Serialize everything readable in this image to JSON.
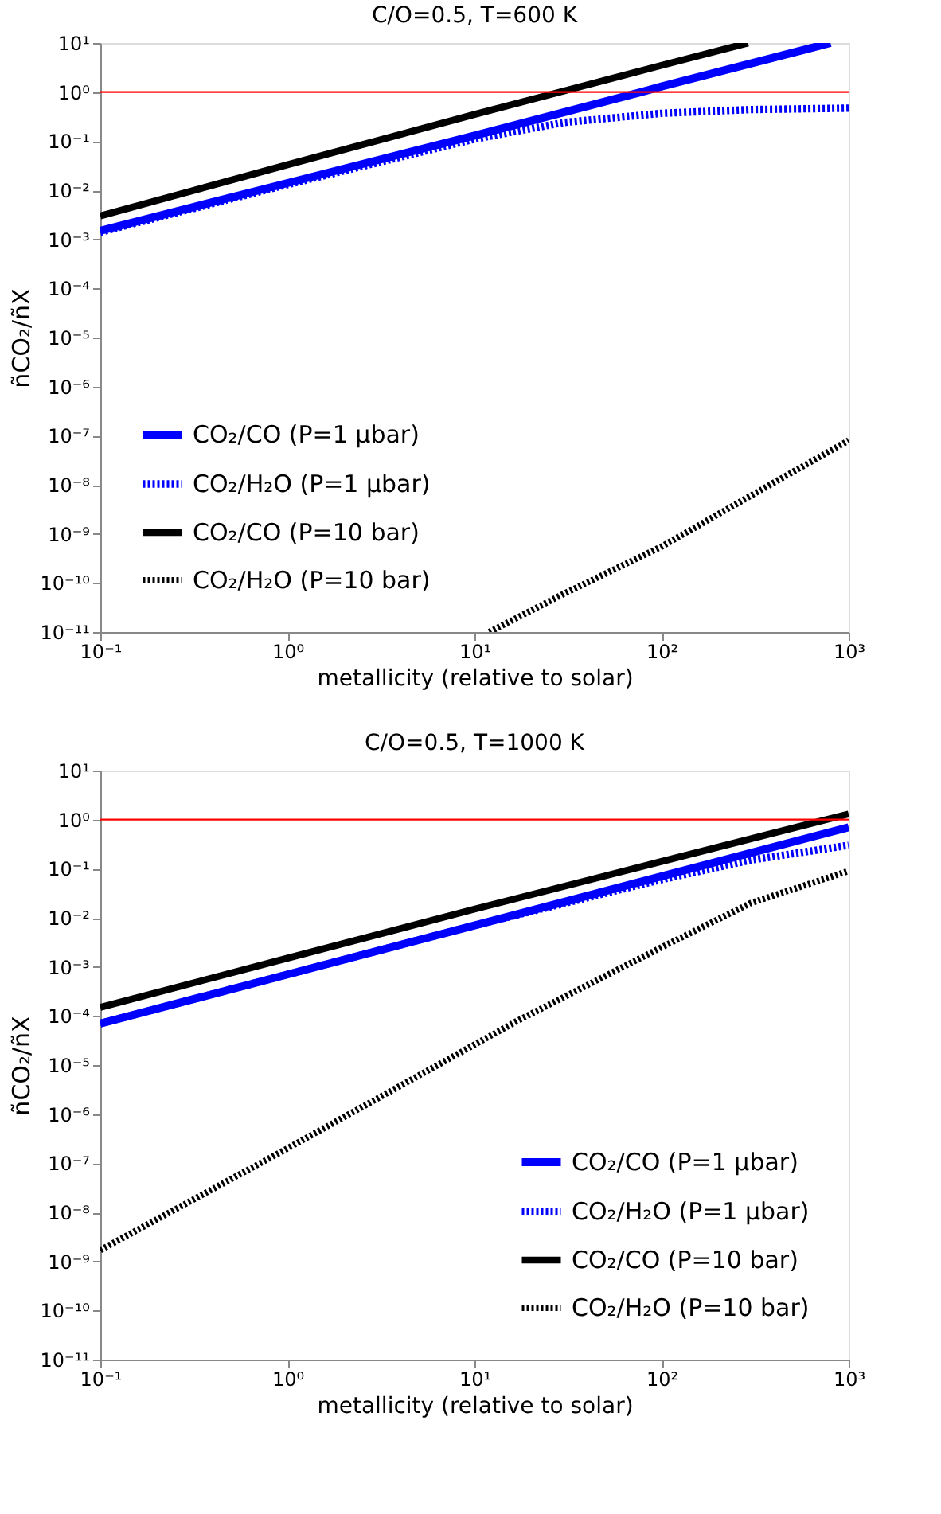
{
  "chart_data": [
    {
      "type": "line",
      "title": "C/O=0.5, T=600 K",
      "xlabel": "metallicity (relative to solar)",
      "ylabel": "ñCO₂/ñX",
      "log": "xy",
      "grid": false,
      "legend": "bottom left",
      "xlim": [
        0.1,
        1000
      ],
      "ylim": [
        1e-11,
        10
      ],
      "xticks": [
        {
          "value": 0.1,
          "label": "10⁻¹"
        },
        {
          "value": 1,
          "label": "10⁰"
        },
        {
          "value": 10,
          "label": "10¹"
        },
        {
          "value": 100,
          "label": "10²"
        },
        {
          "value": 1000,
          "label": "10³"
        }
      ],
      "yticks": [
        {
          "value": 1e-11,
          "label": "10⁻¹¹"
        },
        {
          "value": 1e-10,
          "label": "10⁻¹⁰"
        },
        {
          "value": 1e-09,
          "label": "10⁻⁹"
        },
        {
          "value": 1e-08,
          "label": "10⁻⁸"
        },
        {
          "value": 1e-07,
          "label": "10⁻⁷"
        },
        {
          "value": 1e-06,
          "label": "10⁻⁶"
        },
        {
          "value": 1e-05,
          "label": "10⁻⁵"
        },
        {
          "value": 0.0001,
          "label": "10⁻⁴"
        },
        {
          "value": 0.001,
          "label": "10⁻³"
        },
        {
          "value": 0.01,
          "label": "10⁻²"
        },
        {
          "value": 0.1,
          "label": "10⁻¹"
        },
        {
          "value": 1,
          "label": "10⁰"
        },
        {
          "value": 10,
          "label": "10¹"
        }
      ],
      "ref_lines": [
        {
          "axis": "y",
          "value": 1,
          "color": "#ff0000"
        }
      ],
      "series": [
        {
          "name": "CO₂/CO (P=1 μbar)",
          "color": "#0000ff",
          "line_style": "solid",
          "x": [
            0.1,
            1,
            10,
            78,
            100,
            800
          ],
          "values": [
            0.0015,
            0.014,
            0.13,
            1,
            1.3,
            10
          ]
        },
        {
          "name": "CO₂/H₂O (P=1 μbar)",
          "color": "#0000ff",
          "line_style": "dotted",
          "x": [
            0.1,
            1,
            10,
            30,
            100,
            300,
            1000
          ],
          "values": [
            0.0014,
            0.013,
            0.11,
            0.24,
            0.37,
            0.44,
            0.47
          ]
        },
        {
          "name": "CO₂/CO (P=10 bar)",
          "color": "#000000",
          "line_style": "solid",
          "x": [
            0.1,
            1,
            10,
            30,
            100,
            290
          ],
          "values": [
            0.003,
            0.033,
            0.35,
            1.05,
            3.5,
            10
          ]
        },
        {
          "name": "CO₂/H₂O (P=10 bar)",
          "color": "#000000",
          "line_style": "dotted",
          "x": [
            12,
            30,
            100,
            300,
            1000
          ],
          "values": [
            1e-11,
            6e-11,
            5.5e-10,
            6e-09,
            8e-08
          ]
        }
      ]
    },
    {
      "type": "line",
      "title": "C/O=0.5, T=1000 K",
      "xlabel": "metallicity (relative to solar)",
      "ylabel": "ñCO₂/ñX",
      "log": "xy",
      "grid": false,
      "legend": "bottom right",
      "xlim": [
        0.1,
        1000
      ],
      "ylim": [
        1e-11,
        10
      ],
      "xticks": [
        {
          "value": 0.1,
          "label": "10⁻¹"
        },
        {
          "value": 1,
          "label": "10⁰"
        },
        {
          "value": 10,
          "label": "10¹"
        },
        {
          "value": 100,
          "label": "10²"
        },
        {
          "value": 1000,
          "label": "10³"
        }
      ],
      "yticks": [
        {
          "value": 1e-11,
          "label": "10⁻¹¹"
        },
        {
          "value": 1e-10,
          "label": "10⁻¹⁰"
        },
        {
          "value": 1e-09,
          "label": "10⁻⁹"
        },
        {
          "value": 1e-08,
          "label": "10⁻⁸"
        },
        {
          "value": 1e-07,
          "label": "10⁻⁷"
        },
        {
          "value": 1e-06,
          "label": "10⁻⁶"
        },
        {
          "value": 1e-05,
          "label": "10⁻⁵"
        },
        {
          "value": 0.0001,
          "label": "10⁻⁴"
        },
        {
          "value": 0.001,
          "label": "10⁻³"
        },
        {
          "value": 0.01,
          "label": "10⁻²"
        },
        {
          "value": 0.1,
          "label": "10⁻¹"
        },
        {
          "value": 1,
          "label": "10⁰"
        },
        {
          "value": 10,
          "label": "10¹"
        }
      ],
      "ref_lines": [
        {
          "axis": "y",
          "value": 1,
          "color": "#ff0000"
        }
      ],
      "series": [
        {
          "name": "CO₂/CO (P=1 μbar)",
          "color": "#0000ff",
          "line_style": "solid",
          "x": [
            0.1,
            1,
            10,
            100,
            1000
          ],
          "values": [
            7e-05,
            0.0007,
            0.007,
            0.07,
            0.7
          ]
        },
        {
          "name": "CO₂/H₂O (P=1 μbar)",
          "color": "#0000ff",
          "line_style": "dotted",
          "x": [
            0.1,
            1,
            10,
            100,
            300,
            1000
          ],
          "values": [
            7e-05,
            0.0007,
            0.007,
            0.06,
            0.15,
            0.3
          ]
        },
        {
          "name": "CO₂/CO (P=10 bar)",
          "color": "#000000",
          "line_style": "solid",
          "x": [
            0.1,
            1,
            10,
            100,
            1000
          ],
          "values": [
            0.00015,
            0.0015,
            0.015,
            0.14,
            1.3
          ]
        },
        {
          "name": "CO₂/H₂O (P=10 bar)",
          "color": "#000000",
          "line_style": "dotted",
          "x": [
            0.1,
            1,
            17,
            100,
            300,
            1000
          ],
          "values": [
            1.7e-09,
            2e-07,
            8e-05,
            0.0025,
            0.02,
            0.09
          ]
        }
      ]
    }
  ]
}
